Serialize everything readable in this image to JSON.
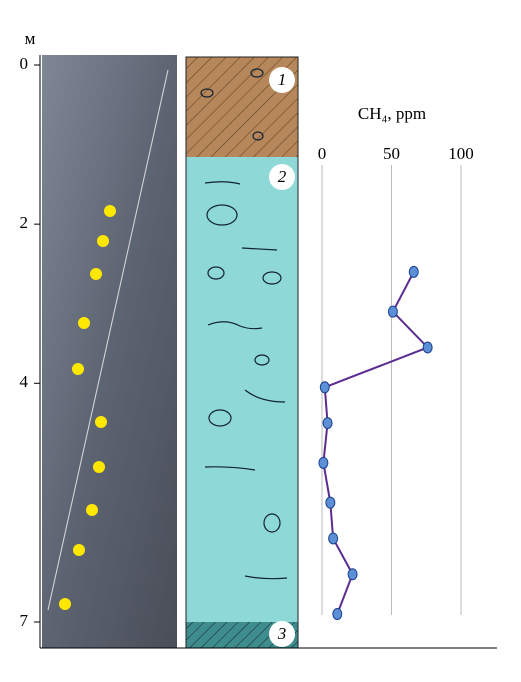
{
  "chart_data": {
    "type": "line",
    "title": "CH₄, ppm",
    "y_unit": "м",
    "layers": [
      "1",
      "2",
      "3"
    ],
    "series": [
      {
        "name": "CH₄",
        "color": "#5b2d91",
        "x": [
          66,
          51,
          76,
          2,
          4,
          1,
          6,
          8,
          22,
          11
        ],
        "values": [
          2.6,
          3.1,
          3.55,
          4.05,
          4.5,
          5.0,
          5.5,
          5.95,
          6.4,
          6.9
        ]
      }
    ],
    "xlim": [
      0,
      100
    ],
    "xticks": [
      0,
      50,
      100
    ],
    "ylim": [
      0,
      7
    ],
    "yticks": [
      0,
      2,
      4,
      7
    ],
    "grid": true
  }
}
